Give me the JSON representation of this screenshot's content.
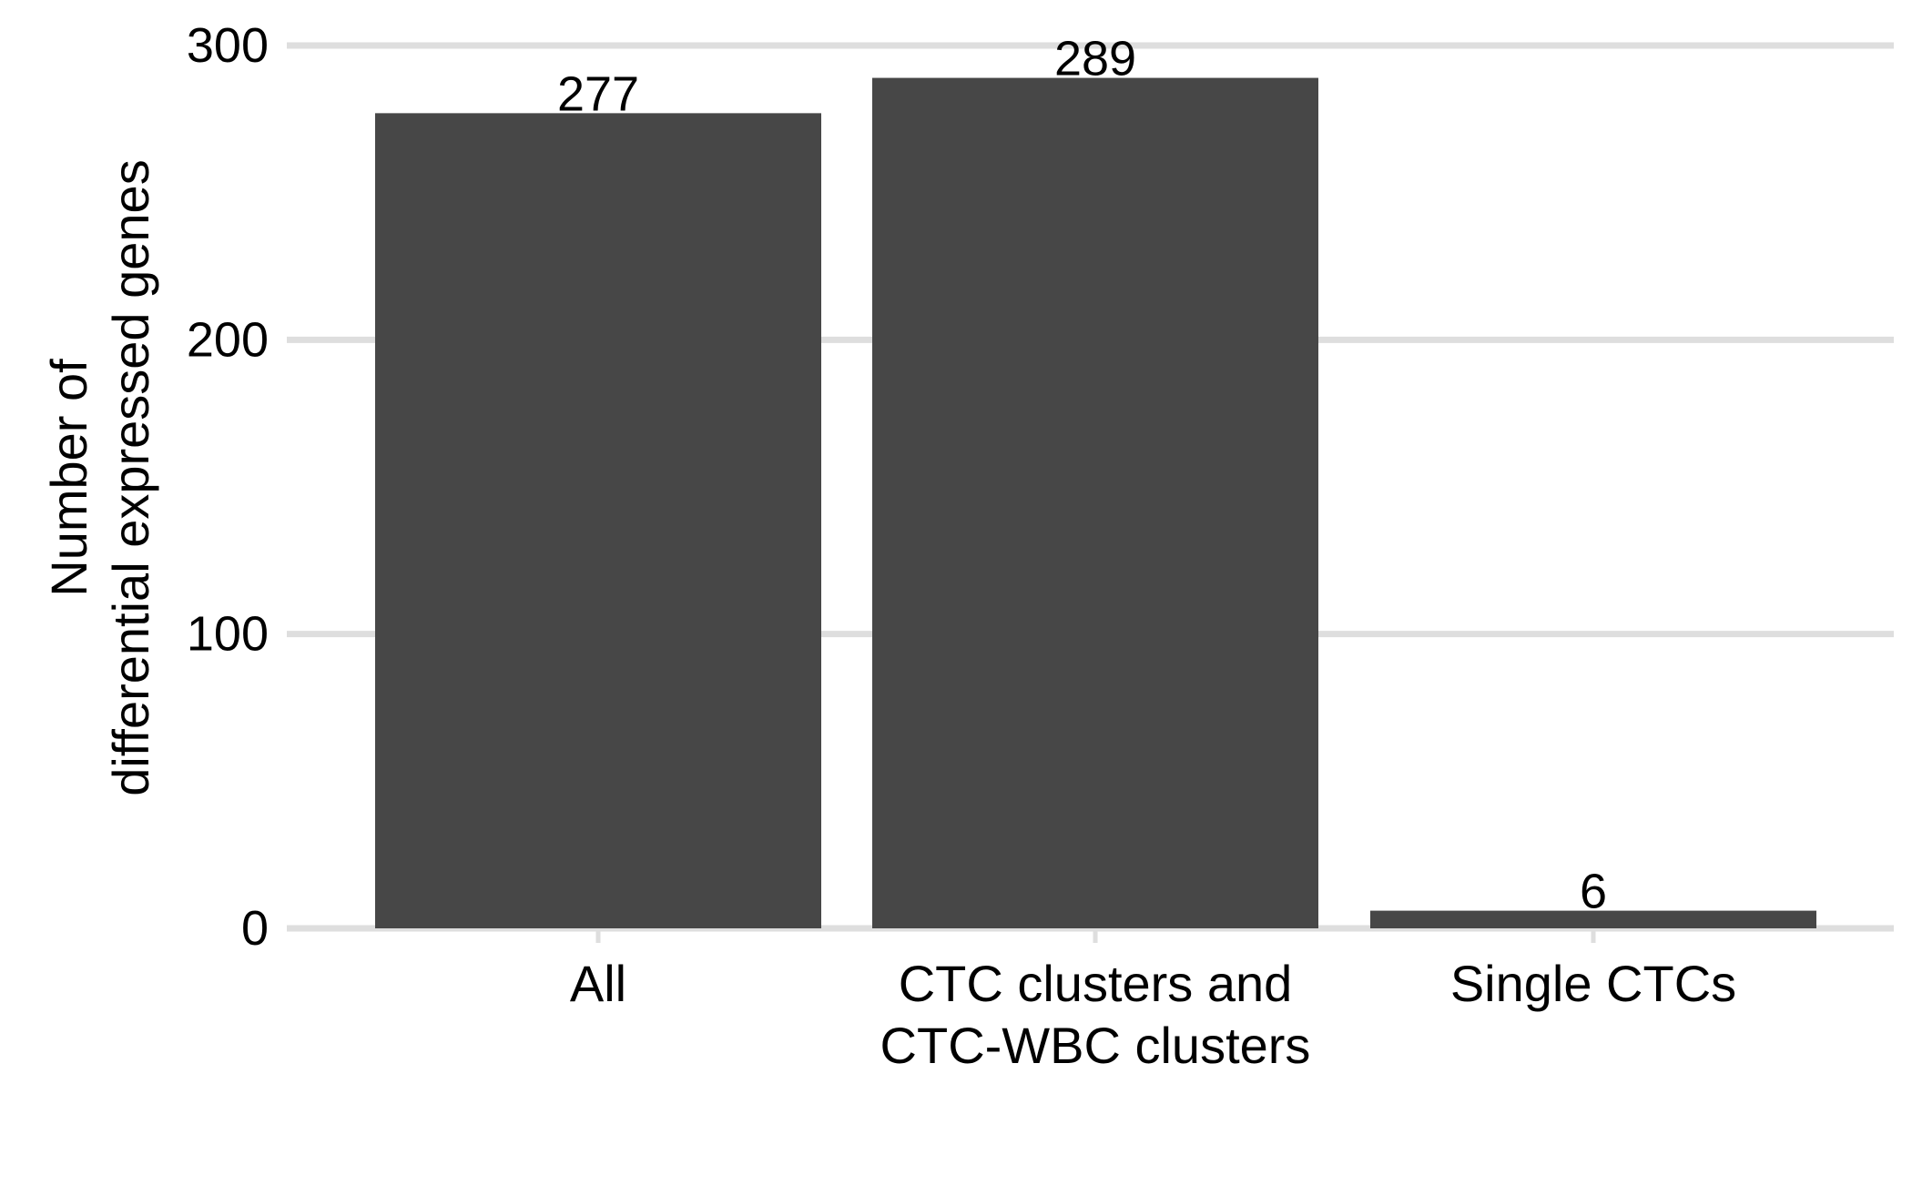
{
  "chart_data": {
    "type": "bar",
    "title": "",
    "xlabel": "",
    "ylabel": [
      "Number of",
      "differential expressed genes"
    ],
    "categories": [
      [
        "All"
      ],
      [
        "CTC clusters and",
        "CTC-WBC clusters"
      ],
      [
        "Single CTCs"
      ]
    ],
    "values": [
      277,
      289,
      6
    ],
    "data_labels": [
      "277",
      "289",
      "6"
    ],
    "yticks": [
      0,
      100,
      200,
      300
    ],
    "ytick_labels": [
      "0",
      "100",
      "200",
      "300"
    ],
    "ylim": [
      0,
      300
    ],
    "grid": "horizontal",
    "legend": "none",
    "colors": {
      "bar": "#474747",
      "grid": "#dedede",
      "tick": "#dedede",
      "text": "#000000"
    }
  }
}
